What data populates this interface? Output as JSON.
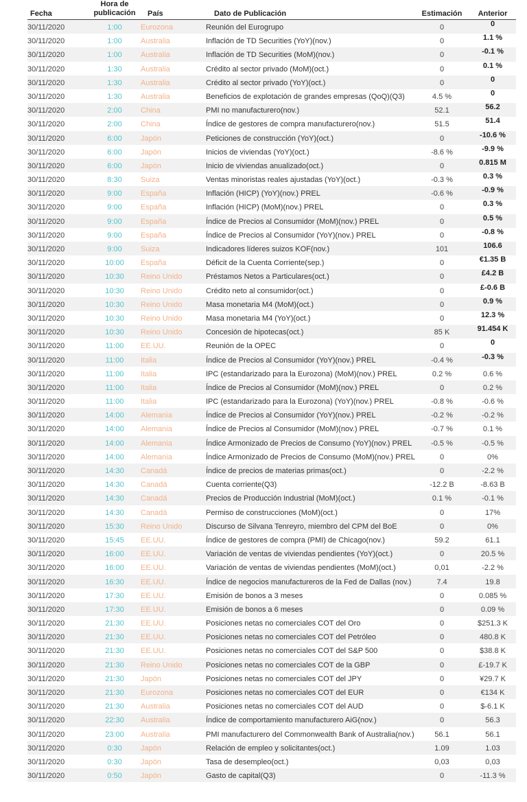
{
  "table": {
    "headers": {
      "fecha": "Fecha",
      "hora_line1": "Hora de",
      "hora_line2": "publicación",
      "pais": "País",
      "dato": "Dato de Publicación",
      "estimacion": "Estimación",
      "anterior": "Anterior"
    },
    "colors": {
      "hora": "#4fc3c9",
      "pais": "#f3b088",
      "row_alt": "#f1f1f1"
    },
    "rows": [
      {
        "fecha": "30/11/2020",
        "hora": "1:00",
        "pais": "Eurozona",
        "dato": "Reunión del Eurogrupo",
        "estimacion": "0",
        "anterior": "0",
        "destacado": true
      },
      {
        "fecha": "30/11/2020",
        "hora": "1:00",
        "pais": "Australia",
        "dato": "Inflación de TD Securities (YoY)(nov.)",
        "estimacion": "0",
        "anterior": "1.1 %",
        "destacado": true
      },
      {
        "fecha": "30/11/2020",
        "hora": "1:00",
        "pais": "Australia",
        "dato": "Inflación de TD Securities (MoM)(nov.)",
        "estimacion": "0",
        "anterior": "-0.1 %",
        "destacado": true
      },
      {
        "fecha": "30/11/2020",
        "hora": "1:30",
        "pais": "Australia",
        "dato": "Crédito al sector privado (MoM)(oct.)",
        "estimacion": "0",
        "anterior": "0.1 %",
        "destacado": true
      },
      {
        "fecha": "30/11/2020",
        "hora": "1:30",
        "pais": "Australia",
        "dato": "Crédito al sector privado (YoY)(oct.)",
        "estimacion": "0",
        "anterior": "0",
        "destacado": true
      },
      {
        "fecha": "30/11/2020",
        "hora": "1:30",
        "pais": "Australia",
        "dato": "Beneficios de explotación de grandes empresas (QoQ)(Q3)",
        "estimacion": "4.5 %",
        "anterior": "0",
        "destacado": true
      },
      {
        "fecha": "30/11/2020",
        "hora": "2:00",
        "pais": "China",
        "dato": "PMI no manufacturero(nov.)",
        "estimacion": "52.1",
        "anterior": "56.2",
        "destacado": true
      },
      {
        "fecha": "30/11/2020",
        "hora": "2:00",
        "pais": "China",
        "dato": "Índice de gestores de compra manufacturero(nov.)",
        "estimacion": "51.5",
        "anterior": "51.4",
        "destacado": true
      },
      {
        "fecha": "30/11/2020",
        "hora": "6:00",
        "pais": "Japón",
        "dato": "Peticiones de construcción (YoY)(oct.)",
        "estimacion": "0",
        "anterior": "-10.6 %",
        "destacado": true
      },
      {
        "fecha": "30/11/2020",
        "hora": "6:00",
        "pais": "Japón",
        "dato": "Inicios de viviendas (YoY)(oct.)",
        "estimacion": "-8.6 %",
        "anterior": "-9.9 %",
        "destacado": true
      },
      {
        "fecha": "30/11/2020",
        "hora": "6:00",
        "pais": "Japón",
        "dato": "Inicio de viviendas anualizado(oct.)",
        "estimacion": "0",
        "anterior": "0.815 M",
        "destacado": true
      },
      {
        "fecha": "30/11/2020",
        "hora": "8:30",
        "pais": "Suiza",
        "dato": "Ventas minoristas reales ajustadas (YoY)(oct.)",
        "estimacion": "-0.3 %",
        "anterior": "0.3 %",
        "destacado": true
      },
      {
        "fecha": "30/11/2020",
        "hora": "9:00",
        "pais": "España",
        "dato": "Inflación (HICP) (YoY)(nov.) PREL",
        "estimacion": "-0.6 %",
        "anterior": "-0.9 %",
        "destacado": true
      },
      {
        "fecha": "30/11/2020",
        "hora": "9:00",
        "pais": "España",
        "dato": "Inflación (HICP) (MoM)(nov.) PREL",
        "estimacion": "0",
        "anterior": "0.3 %",
        "destacado": true
      },
      {
        "fecha": "30/11/2020",
        "hora": "9:00",
        "pais": "España",
        "dato": "Índice de Precios al Consumidor (MoM)(nov.) PREL",
        "estimacion": "0",
        "anterior": "0.5 %",
        "destacado": true
      },
      {
        "fecha": "30/11/2020",
        "hora": "9:00",
        "pais": "España",
        "dato": "Índice de Precios al Consumidor (YoY)(nov.) PREL",
        "estimacion": "0",
        "anterior": "-0.8 %",
        "destacado": true
      },
      {
        "fecha": "30/11/2020",
        "hora": "9:00",
        "pais": "Suiza",
        "dato": "Indicadores líderes suizos KOF(nov.)",
        "estimacion": "101",
        "anterior": "106.6",
        "destacado": true
      },
      {
        "fecha": "30/11/2020",
        "hora": "10:00",
        "pais": "España",
        "dato": "Déficit de la Cuenta Corriente(sep.)",
        "estimacion": "0",
        "anterior": "€1.35 B",
        "destacado": true
      },
      {
        "fecha": "30/11/2020",
        "hora": "10:30",
        "pais": "Reino Unido",
        "dato": "Préstamos Netos a Particulares(oct.)",
        "estimacion": "0",
        "anterior": "£4.2 B",
        "destacado": true
      },
      {
        "fecha": "30/11/2020",
        "hora": "10:30",
        "pais": "Reino Unido",
        "dato": "Crédito neto al consumidor(oct.)",
        "estimacion": "0",
        "anterior": "£-0.6 B",
        "destacado": true
      },
      {
        "fecha": "30/11/2020",
        "hora": "10:30",
        "pais": "Reino Unido",
        "dato": "Masa monetaria M4 (MoM)(oct.)",
        "estimacion": "0",
        "anterior": "0.9 %",
        "destacado": true
      },
      {
        "fecha": "30/11/2020",
        "hora": "10:30",
        "pais": "Reino Unido",
        "dato": "Masa monetaria M4 (YoY)(oct.)",
        "estimacion": "0",
        "anterior": "12.3 %",
        "destacado": true
      },
      {
        "fecha": "30/11/2020",
        "hora": "10:30",
        "pais": "Reino Unido",
        "dato": "Concesión de hipotecas(oct.)",
        "estimacion": "85 K",
        "anterior": "91.454 K",
        "destacado": true
      },
      {
        "fecha": "30/11/2020",
        "hora": "11:00",
        "pais": "EE.UU.",
        "dato": "Reunión de la OPEC",
        "estimacion": "0",
        "anterior": "0",
        "destacado": true
      },
      {
        "fecha": "30/11/2020",
        "hora": "11:00",
        "pais": "Italia",
        "dato": "Índice de Precios al Consumidor (YoY)(nov.) PREL",
        "estimacion": "-0.4 %",
        "anterior": "-0.3 %",
        "destacado": true
      },
      {
        "fecha": "30/11/2020",
        "hora": "11:00",
        "pais": "Italia",
        "dato": "IPC (estandarizado para la Eurozona) (MoM)(nov.) PREL",
        "estimacion": "0.2 %",
        "anterior": "0.6 %",
        "destacado": false
      },
      {
        "fecha": "30/11/2020",
        "hora": "11:00",
        "pais": "Italia",
        "dato": "Índice de Precios al Consumidor (MoM)(nov.) PREL",
        "estimacion": "0",
        "anterior": "0.2 %",
        "destacado": false
      },
      {
        "fecha": "30/11/2020",
        "hora": "11:00",
        "pais": "Italia",
        "dato": "IPC (estandarizado para la Eurozona) (YoY)(nov.) PREL",
        "estimacion": "-0.8 %",
        "anterior": "-0.6 %",
        "destacado": false
      },
      {
        "fecha": "30/11/2020",
        "hora": "14:00",
        "pais": "Alemania",
        "dato": "Índice de Precios al Consumidor (YoY)(nov.) PREL",
        "estimacion": "-0.2 %",
        "anterior": "-0.2 %",
        "destacado": false
      },
      {
        "fecha": "30/11/2020",
        "hora": "14:00",
        "pais": "Alemania",
        "dato": "Índice de Precios al Consumidor (MoM)(nov.) PREL",
        "estimacion": "-0.7 %",
        "anterior": "0.1 %",
        "destacado": false
      },
      {
        "fecha": "30/11/2020",
        "hora": "14:00",
        "pais": "Alemania",
        "dato": "Índice Armonizado de Precios de Consumo (YoY)(nov.) PREL",
        "estimacion": "-0.5 %",
        "anterior": "-0.5 %",
        "destacado": false
      },
      {
        "fecha": "30/11/2020",
        "hora": "14:00",
        "pais": "Alemania",
        "dato": "Índice Armonizado de Precios de Consumo (MoM)(nov.) PREL",
        "estimacion": "0",
        "anterior": "0%",
        "destacado": false
      },
      {
        "fecha": "30/11/2020",
        "hora": "14:30",
        "pais": "Canadá",
        "dato": "Índice de precios de materias primas(oct.)",
        "estimacion": "0",
        "anterior": "-2.2 %",
        "destacado": false
      },
      {
        "fecha": "30/11/2020",
        "hora": "14:30",
        "pais": "Canadá",
        "dato": "Cuenta corriente(Q3)",
        "estimacion": "-12.2 B",
        "anterior": "-8.63 B",
        "destacado": false
      },
      {
        "fecha": "30/11/2020",
        "hora": "14:30",
        "pais": "Canadá",
        "dato": "Precios de Producción Industrial (MoM)(oct.)",
        "estimacion": "0.1 %",
        "anterior": "-0.1 %",
        "destacado": false
      },
      {
        "fecha": "30/11/2020",
        "hora": "14:30",
        "pais": "Canadá",
        "dato": "Permiso de construcciones (MoM)(oct.)",
        "estimacion": "0",
        "anterior": "17%",
        "destacado": false
      },
      {
        "fecha": "30/11/2020",
        "hora": "15:30",
        "pais": "Reino Unido",
        "dato": "Discurso de Silvana Tenreyro, miembro del CPM del BoE",
        "estimacion": "0",
        "anterior": "0%",
        "destacado": false
      },
      {
        "fecha": "30/11/2020",
        "hora": "15:45",
        "pais": "EE.UU.",
        "dato": "Índice de gestores de compra (PMI) de Chicago(nov.)",
        "estimacion": "59.2",
        "anterior": "61.1",
        "destacado": false
      },
      {
        "fecha": "30/11/2020",
        "hora": "16:00",
        "pais": "EE.UU.",
        "dato": "Variación de ventas de viviendas pendientes (YoY)(oct.)",
        "estimacion": "0",
        "anterior": "20.5 %",
        "destacado": false
      },
      {
        "fecha": "30/11/2020",
        "hora": "16:00",
        "pais": "EE.UU.",
        "dato": "Variación de ventas de viviendas pendientes (MoM)(oct.)",
        "estimacion": "0,01",
        "anterior": "-2.2 %",
        "destacado": false
      },
      {
        "fecha": "30/11/2020",
        "hora": "16:30",
        "pais": "EE.UU.",
        "dato": "Índice de negocios manufactureros de la Fed de Dallas (nov.)",
        "estimacion": "7.4",
        "anterior": "19.8",
        "destacado": false
      },
      {
        "fecha": "30/11/2020",
        "hora": "17:30",
        "pais": "EE.UU.",
        "dato": "Emisión de bonos a 3 meses",
        "estimacion": "0",
        "anterior": "0.085 %",
        "destacado": false
      },
      {
        "fecha": "30/11/2020",
        "hora": "17:30",
        "pais": "EE.UU.",
        "dato": "Emisión de bonos a 6 meses",
        "estimacion": "0",
        "anterior": "0.09 %",
        "destacado": false
      },
      {
        "fecha": "30/11/2020",
        "hora": "21:30",
        "pais": "EE.UU.",
        "dato": "Posiciones netas no comerciales COT del Oro",
        "estimacion": "0",
        "anterior": "$251.3 K",
        "destacado": false
      },
      {
        "fecha": "30/11/2020",
        "hora": "21:30",
        "pais": "EE.UU.",
        "dato": "Posiciones netas no comerciales COT del Petróleo",
        "estimacion": "0",
        "anterior": "480.8 K",
        "destacado": false
      },
      {
        "fecha": "30/11/2020",
        "hora": "21:30",
        "pais": "EE.UU.",
        "dato": "Posiciones netas no comerciales COT del S&P 500",
        "estimacion": "0",
        "anterior": "$38.8 K",
        "destacado": false
      },
      {
        "fecha": "30/11/2020",
        "hora": "21:30",
        "pais": "Reino Unido",
        "dato": "Posiciones netas no comerciales COT de la GBP",
        "estimacion": "0",
        "anterior": "£-19.7 K",
        "destacado": false
      },
      {
        "fecha": "30/11/2020",
        "hora": "21:30",
        "pais": "Japón",
        "dato": "Posiciones netas no comerciales COT del JPY",
        "estimacion": "0",
        "anterior": "¥29.7 K",
        "destacado": false
      },
      {
        "fecha": "30/11/2020",
        "hora": "21:30",
        "pais": "Eurozona",
        "dato": "Posiciones netas no comerciales COT del EUR",
        "estimacion": "0",
        "anterior": "€134 K",
        "destacado": false
      },
      {
        "fecha": "30/11/2020",
        "hora": "21:30",
        "pais": "Australia",
        "dato": "Posiciones netas no comerciales COT del AUD",
        "estimacion": "0",
        "anterior": "$-6.1 K",
        "destacado": false
      },
      {
        "fecha": "30/11/2020",
        "hora": "22:30",
        "pais": "Australia",
        "dato": "Índice de comportamiento manufacturero AiG(nov.)",
        "estimacion": "0",
        "anterior": "56.3",
        "destacado": false
      },
      {
        "fecha": "30/11/2020",
        "hora": "23:00",
        "pais": "Australia",
        "dato": "PMI manufacturero del Commonwealth Bank of Australia(nov.)",
        "estimacion": "56.1",
        "anterior": "56.1",
        "destacado": false
      },
      {
        "fecha": "30/11/2020",
        "hora": "0:30",
        "pais": "Japón",
        "dato": "Relación de empleo y solicitantes(oct.)",
        "estimacion": "1.09",
        "anterior": "1.03",
        "destacado": false
      },
      {
        "fecha": "30/11/2020",
        "hora": "0:30",
        "pais": "Japón",
        "dato": "Tasa de desempleo(oct.)",
        "estimacion": "0,03",
        "anterior": "0,03",
        "destacado": false
      },
      {
        "fecha": "30/11/2020",
        "hora": "0:50",
        "pais": "Japón",
        "dato": "Gasto de capital(Q3)",
        "estimacion": "0",
        "anterior": "-11.3 %",
        "destacado": false
      }
    ]
  }
}
